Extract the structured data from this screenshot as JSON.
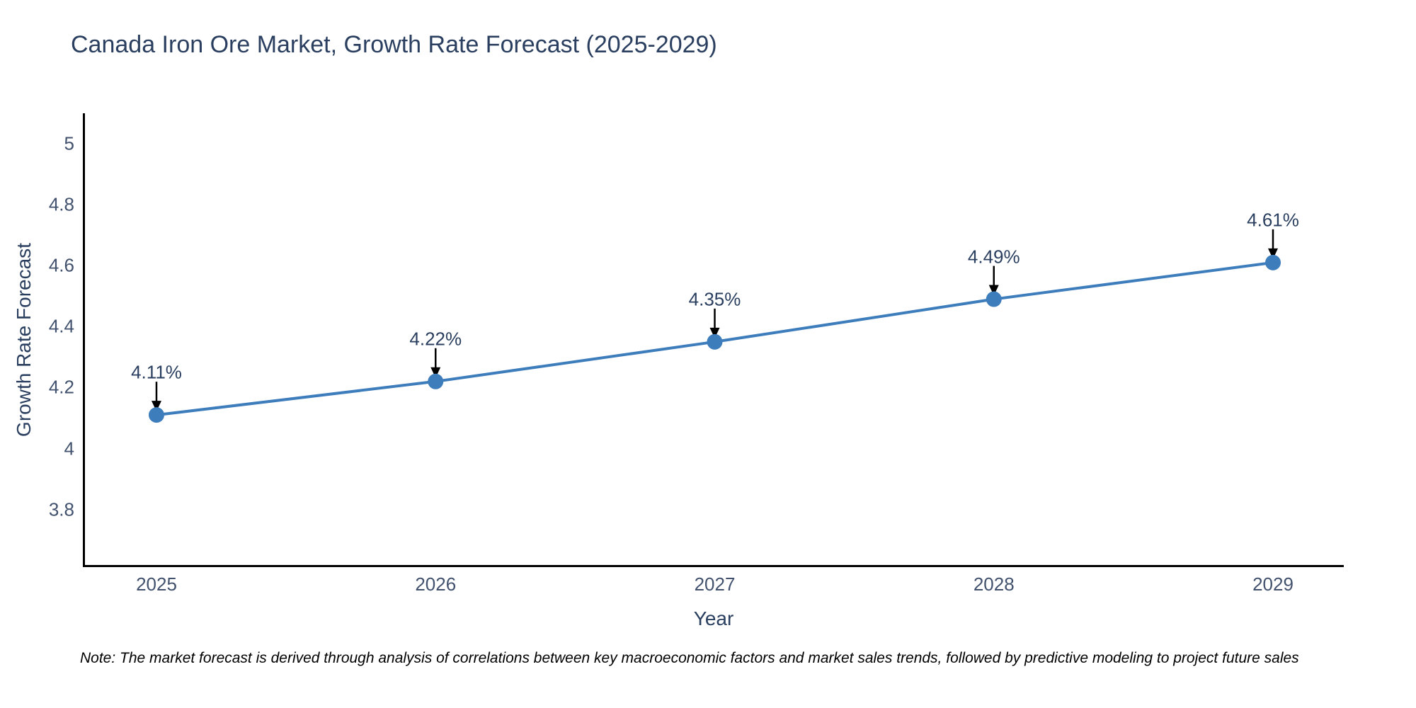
{
  "chart": {
    "title": "Canada Iron Ore Market, Growth Rate Forecast (2025-2029)",
    "xlabel": "Year",
    "ylabel": "Growth Rate Forecast",
    "note": "Note: The market forecast is derived through analysis of correlations between key macroeconomic factors and market sales trends, followed by predictive modeling to project future sales",
    "colors": {
      "line": "#3e7dbc",
      "marker": "#3e7dbc",
      "title_text": "#2a3f5f",
      "tick_text": "#42526e",
      "axis_line": "#000000",
      "arrow": "#000000",
      "note_text": "#000000"
    }
  },
  "chart_data": {
    "type": "line",
    "title": "Canada Iron Ore Market, Growth Rate Forecast (2025-2029)",
    "xlabel": "Year",
    "ylabel": "Growth Rate Forecast",
    "x": [
      2025,
      2026,
      2027,
      2028,
      2029
    ],
    "categories": [
      "2025",
      "2026",
      "2027",
      "2028",
      "2029"
    ],
    "values": [
      4.11,
      4.22,
      4.35,
      4.49,
      4.61
    ],
    "point_labels": [
      "4.11%",
      "4.22%",
      "4.35%",
      "4.49%",
      "4.61%"
    ],
    "yticks": [
      5,
      4.8,
      4.6,
      4.4,
      4.2,
      4,
      3.8
    ],
    "ytick_labels": [
      "5",
      "4.8",
      "4.6",
      "4.4",
      "4.2",
      "4",
      "3.8"
    ],
    "ylim": [
      3.62,
      5.1
    ],
    "grid": false,
    "legend_position": "none",
    "marker": "circle",
    "annotations": "each point labeled with percent value and downward black arrow"
  }
}
